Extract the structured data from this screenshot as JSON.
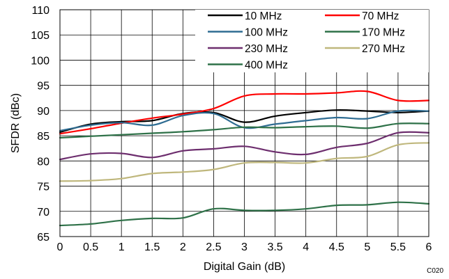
{
  "chart_data": {
    "type": "line",
    "xlabel": "Digital Gain (dB)",
    "ylabel": "SFDR (dBc)",
    "xlim": [
      0,
      6
    ],
    "ylim": [
      65,
      110
    ],
    "xticks": [
      0,
      0.5,
      1,
      1.5,
      2,
      2.5,
      3,
      3.5,
      4,
      4.5,
      5,
      5.5,
      6
    ],
    "yticks": [
      65,
      70,
      75,
      80,
      85,
      90,
      95,
      100,
      105,
      110
    ],
    "grid": "on",
    "legend_position": "top-right",
    "x": [
      0,
      0.5,
      1,
      1.5,
      2,
      2.5,
      3,
      3.5,
      4,
      4.5,
      5,
      5.5,
      6
    ],
    "series": [
      {
        "name": "10 MHz",
        "color": "#000000",
        "values": [
          85.7,
          87.3,
          87.8,
          88.0,
          89.4,
          89.6,
          87.7,
          88.9,
          89.6,
          90.1,
          89.9,
          89.6,
          89.9
        ]
      },
      {
        "name": "70 MHz",
        "color": "#ff0000",
        "values": [
          85.4,
          86.4,
          87.5,
          88.5,
          89.3,
          90.4,
          92.9,
          93.3,
          93.3,
          93.5,
          93.8,
          92.0,
          92.0
        ]
      },
      {
        "name": "100 MHz",
        "color": "#2e6c92",
        "values": [
          86.0,
          87.1,
          87.6,
          87.1,
          89.0,
          89.4,
          86.6,
          87.3,
          88.0,
          88.6,
          88.4,
          89.9,
          89.9
        ]
      },
      {
        "name": "170 MHz",
        "color": "#2e7148",
        "values": [
          84.6,
          84.9,
          85.2,
          85.5,
          85.8,
          86.2,
          86.7,
          86.6,
          86.8,
          86.9,
          86.5,
          87.4,
          87.4
        ]
      },
      {
        "name": "230 MHz",
        "color": "#6d2e6e",
        "values": [
          80.3,
          81.4,
          81.5,
          80.7,
          82.0,
          82.4,
          82.9,
          81.8,
          81.3,
          82.7,
          83.5,
          85.6,
          85.6
        ]
      },
      {
        "name": "270 MHz",
        "color": "#bfb77c",
        "values": [
          76.0,
          76.1,
          76.5,
          77.5,
          77.8,
          78.3,
          79.6,
          79.7,
          79.6,
          80.5,
          80.9,
          83.2,
          83.6
        ]
      },
      {
        "name": "400 MHz",
        "color": "#2e7148",
        "values": [
          67.2,
          67.5,
          68.2,
          68.6,
          68.7,
          70.5,
          70.2,
          70.2,
          70.5,
          71.2,
          71.3,
          71.8,
          71.5
        ]
      }
    ]
  },
  "figure_code": "C020"
}
